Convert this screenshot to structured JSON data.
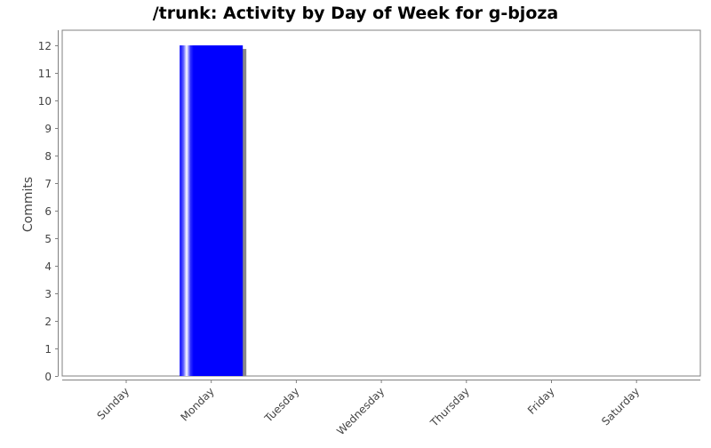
{
  "chart_data": {
    "type": "bar",
    "title": "/trunk: Activity by Day of Week for g-bjoza",
    "xlabel": "",
    "ylabel": "Commits",
    "categories": [
      "Sunday",
      "Monday",
      "Tuesday",
      "Wednesday",
      "Thursday",
      "Friday",
      "Saturday"
    ],
    "values": [
      0,
      12,
      0,
      0,
      0,
      0,
      0
    ],
    "ylim": [
      0,
      12.55
    ],
    "yticks": [
      0,
      1,
      2,
      3,
      4,
      5,
      6,
      7,
      8,
      9,
      10,
      11,
      12
    ],
    "grid": false,
    "legend": "none",
    "colors": {
      "bar": "#0000ff",
      "shadow": "#888888",
      "axis": "#808080",
      "text": "#444444"
    }
  }
}
